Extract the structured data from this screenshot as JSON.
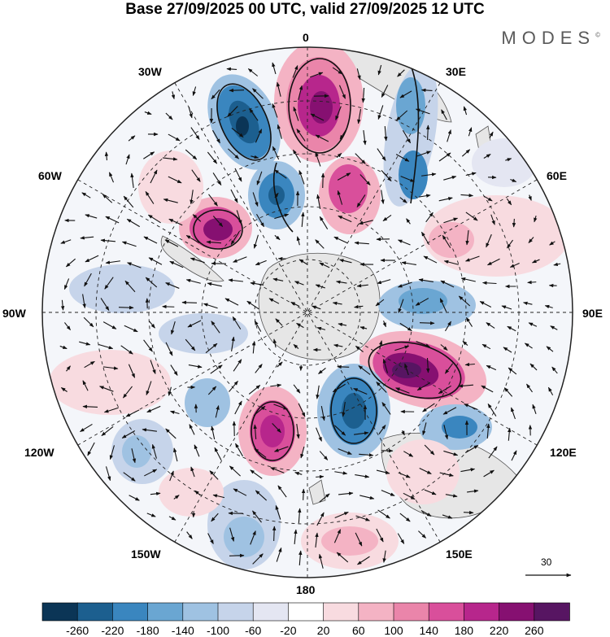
{
  "title": "Base 27/09/2025 00 UTC, valid 27/09/2025 12 UTC",
  "brand": "MODES",
  "brand_mark": "©",
  "longitude_labels": {
    "top": "0",
    "tl": "30W",
    "tr": "30E",
    "l60": "60W",
    "r60": "60E",
    "left": "90W",
    "right": "90E",
    "l120": "120W",
    "r120": "120E",
    "bl": "150W",
    "br": "150E",
    "bottom": "180"
  },
  "reference_vector": "30",
  "colorbar": {
    "labels": [
      "-260",
      "-220",
      "-180",
      "-140",
      "-100",
      "-60",
      "-20",
      "20",
      "60",
      "100",
      "140",
      "180",
      "220",
      "260"
    ],
    "colors": [
      "#0b3556",
      "#1c5f8f",
      "#3a86bf",
      "#6aa6d2",
      "#9fc2e2",
      "#c6d4ea",
      "#e4e6f2",
      "#ffffff",
      "#f8dbe0",
      "#f4b3c4",
      "#ea85aa",
      "#d94f9b",
      "#b7268c",
      "#861071",
      "#571562"
    ]
  },
  "colors": {
    "land": "#e6e6e6",
    "coast": "#555555",
    "grid": "#222222",
    "arrow": "#111111",
    "contour": "#111111"
  }
}
